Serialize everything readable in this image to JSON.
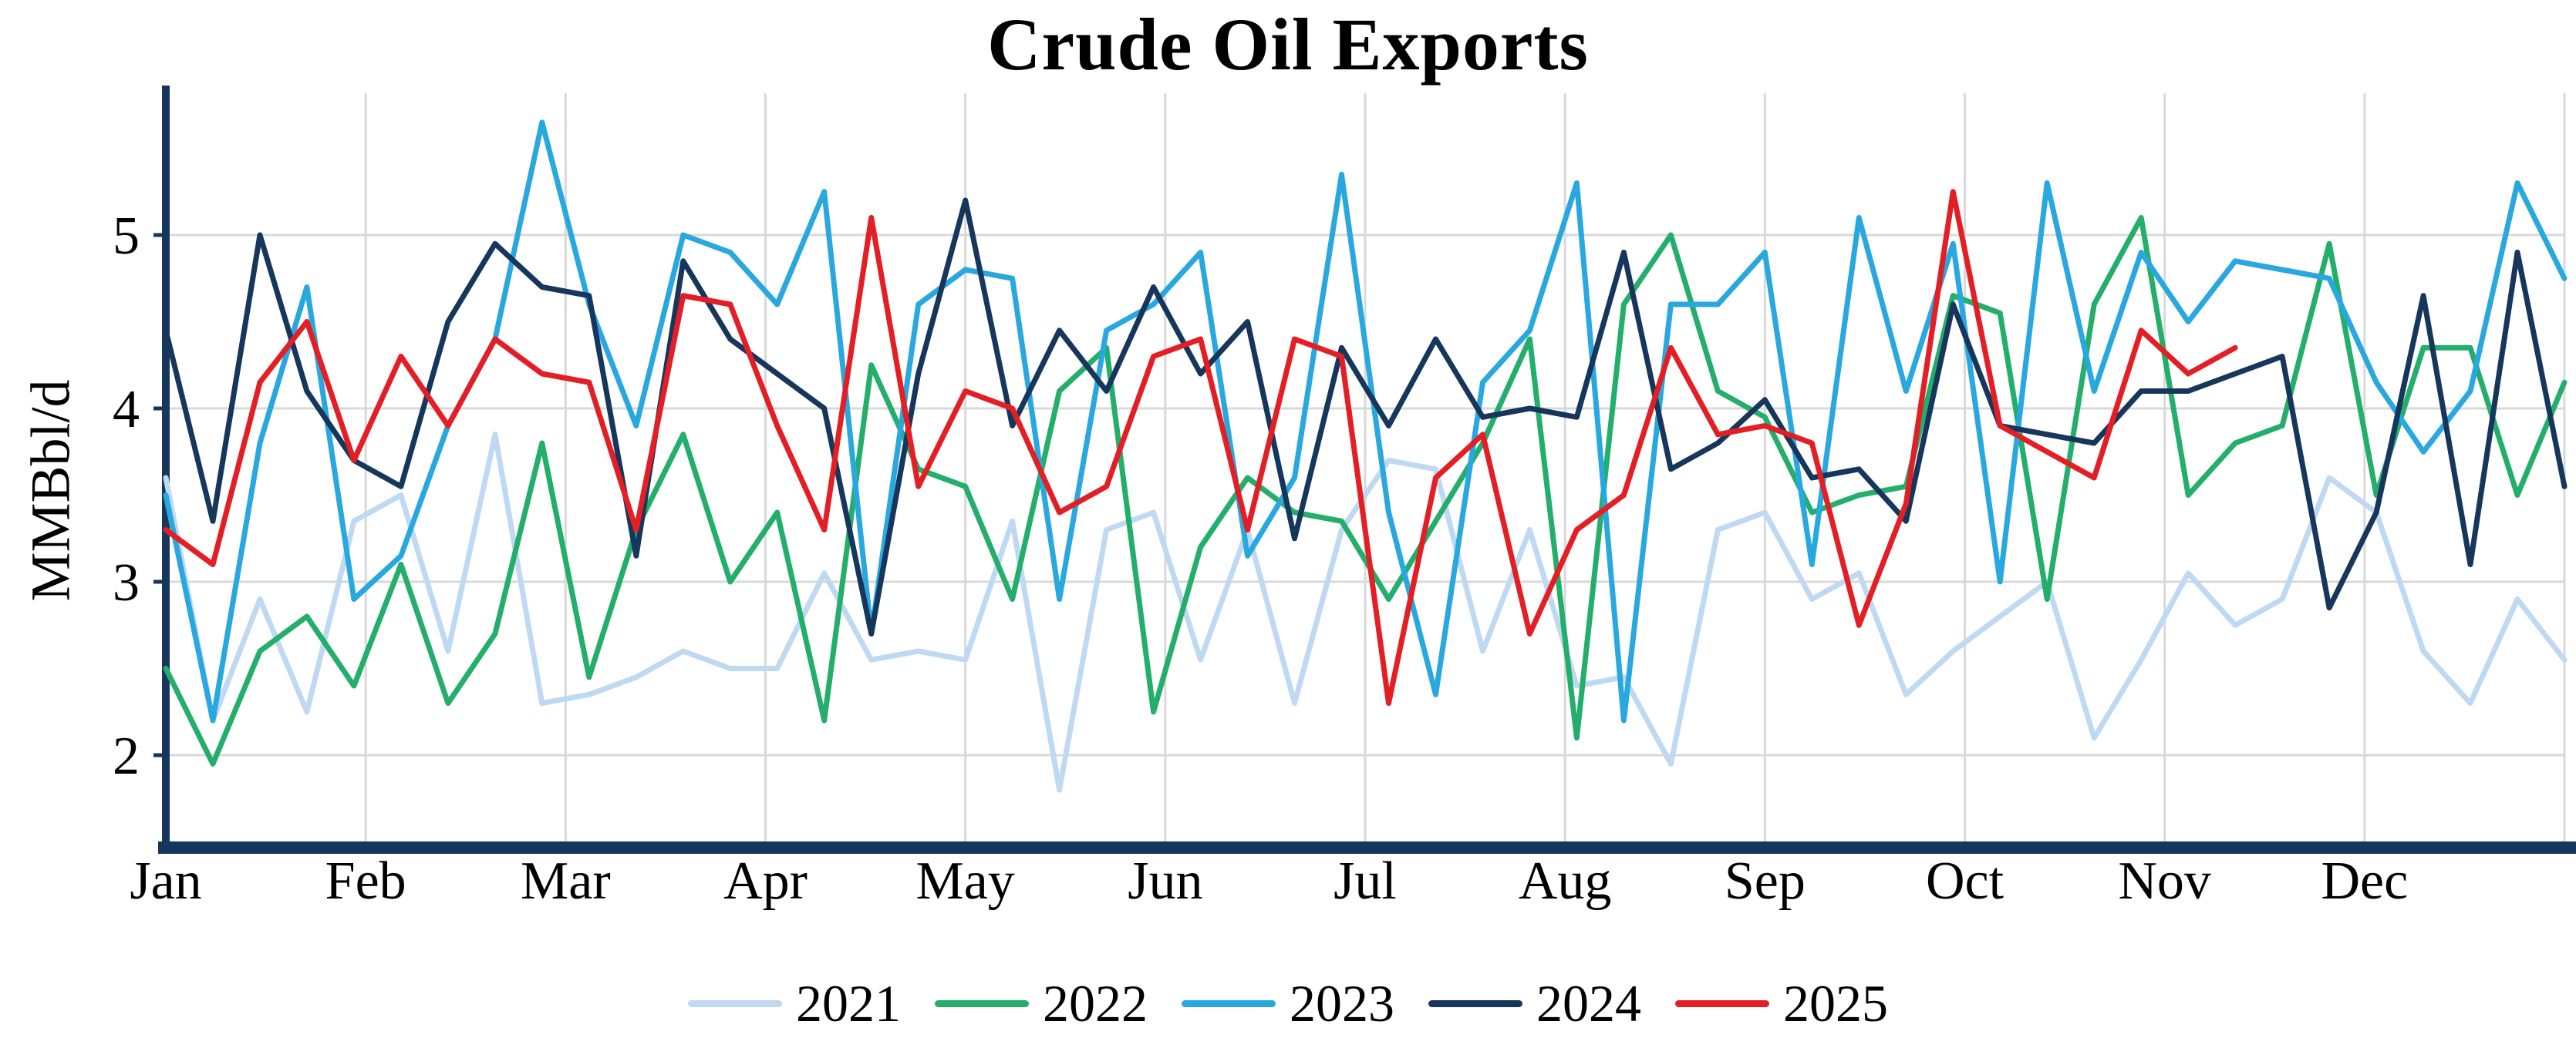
{
  "chart_data": {
    "type": "line",
    "title": "Crude Oil Exports",
    "xlabel": "",
    "ylabel": "MMBbl/d",
    "x_unit": "week-of-year",
    "x_tick_labels": [
      "Jan",
      "Feb",
      "Mar",
      "Apr",
      "May",
      "Jun",
      "Jul",
      "Aug",
      "Sep",
      "Oct",
      "Nov",
      "Dec"
    ],
    "yticks": [
      2,
      3,
      4,
      5
    ],
    "ylim": [
      1.5,
      5.85
    ],
    "grid": true,
    "grid_color": "#d9d9d9",
    "axis_color": "#17365c",
    "legend_position": "bottom",
    "series": [
      {
        "name": "2021",
        "color": "#bfd9f2",
        "values": [
          3.6,
          2.2,
          2.9,
          2.25,
          3.35,
          3.5,
          2.6,
          3.85,
          2.3,
          2.35,
          2.45,
          2.6,
          2.5,
          2.5,
          3.05,
          2.55,
          2.6,
          2.55,
          3.35,
          1.8,
          3.3,
          3.4,
          2.55,
          3.3,
          2.3,
          3.3,
          3.7,
          3.65,
          2.6,
          3.3,
          2.4,
          2.45,
          1.95,
          3.3,
          3.4,
          2.9,
          3.05,
          2.35,
          2.6,
          2.8,
          3.0,
          2.1,
          2.55,
          3.05,
          2.75,
          2.9,
          3.6,
          3.4,
          2.6,
          2.3,
          2.9,
          2.55
        ]
      },
      {
        "name": "2022",
        "color": "#24ae6b",
        "values": [
          2.5,
          1.95,
          2.6,
          2.8,
          2.4,
          3.1,
          2.3,
          2.7,
          3.8,
          2.45,
          3.3,
          3.85,
          3.0,
          3.4,
          2.2,
          4.25,
          3.65,
          3.55,
          2.9,
          4.1,
          4.35,
          2.25,
          3.2,
          3.6,
          3.4,
          3.35,
          2.9,
          3.35,
          3.8,
          4.4,
          2.1,
          4.6,
          5.0,
          4.1,
          3.95,
          3.4,
          3.5,
          3.55,
          4.65,
          4.55,
          2.9,
          4.6,
          5.1,
          3.5,
          3.8,
          3.9,
          4.95,
          3.5,
          4.35,
          4.35,
          3.5,
          4.15
        ]
      },
      {
        "name": "2023",
        "color": "#29a8e0",
        "values": [
          3.5,
          2.2,
          3.8,
          4.7,
          2.9,
          3.15,
          3.9,
          4.4,
          5.65,
          4.6,
          3.9,
          5.0,
          4.9,
          4.6,
          5.25,
          2.7,
          4.6,
          4.8,
          4.75,
          2.9,
          4.45,
          4.6,
          4.9,
          3.15,
          3.6,
          5.35,
          3.4,
          2.35,
          4.15,
          4.45,
          5.3,
          2.2,
          4.6,
          4.6,
          4.9,
          3.1,
          5.1,
          4.1,
          4.95,
          3.0,
          5.3,
          4.1,
          4.9,
          4.5,
          4.85,
          4.8,
          4.75,
          4.15,
          3.75,
          4.1,
          5.3,
          4.75
        ]
      },
      {
        "name": "2024",
        "color": "#17365c",
        "values": [
          4.45,
          3.35,
          5.0,
          4.1,
          3.7,
          3.55,
          4.5,
          4.95,
          4.7,
          4.65,
          3.15,
          4.85,
          4.4,
          4.2,
          4.0,
          2.7,
          4.2,
          5.2,
          3.9,
          4.45,
          4.1,
          4.7,
          4.2,
          4.5,
          3.25,
          4.35,
          3.9,
          4.4,
          3.95,
          4.0,
          3.95,
          4.9,
          3.65,
          3.8,
          4.05,
          3.6,
          3.65,
          3.35,
          4.6,
          3.9,
          3.85,
          3.8,
          4.1,
          4.1,
          4.2,
          4.3,
          2.85,
          3.4,
          4.65,
          3.1,
          4.9,
          3.55
        ]
      },
      {
        "name": "2025",
        "color": "#e41e25",
        "values": [
          3.3,
          3.1,
          4.15,
          4.5,
          3.7,
          4.3,
          3.9,
          4.4,
          4.2,
          4.15,
          3.3,
          4.65,
          4.6,
          3.9,
          3.3,
          5.1,
          3.55,
          4.1,
          4.0,
          3.4,
          3.55,
          4.3,
          4.4,
          3.3,
          4.4,
          4.3,
          2.3,
          3.6,
          3.85,
          2.7,
          3.3,
          3.5,
          4.35,
          3.85,
          3.9,
          3.8,
          2.75,
          3.45,
          5.25,
          3.9,
          3.75,
          3.6,
          4.45,
          4.2,
          4.35
        ]
      }
    ]
  }
}
